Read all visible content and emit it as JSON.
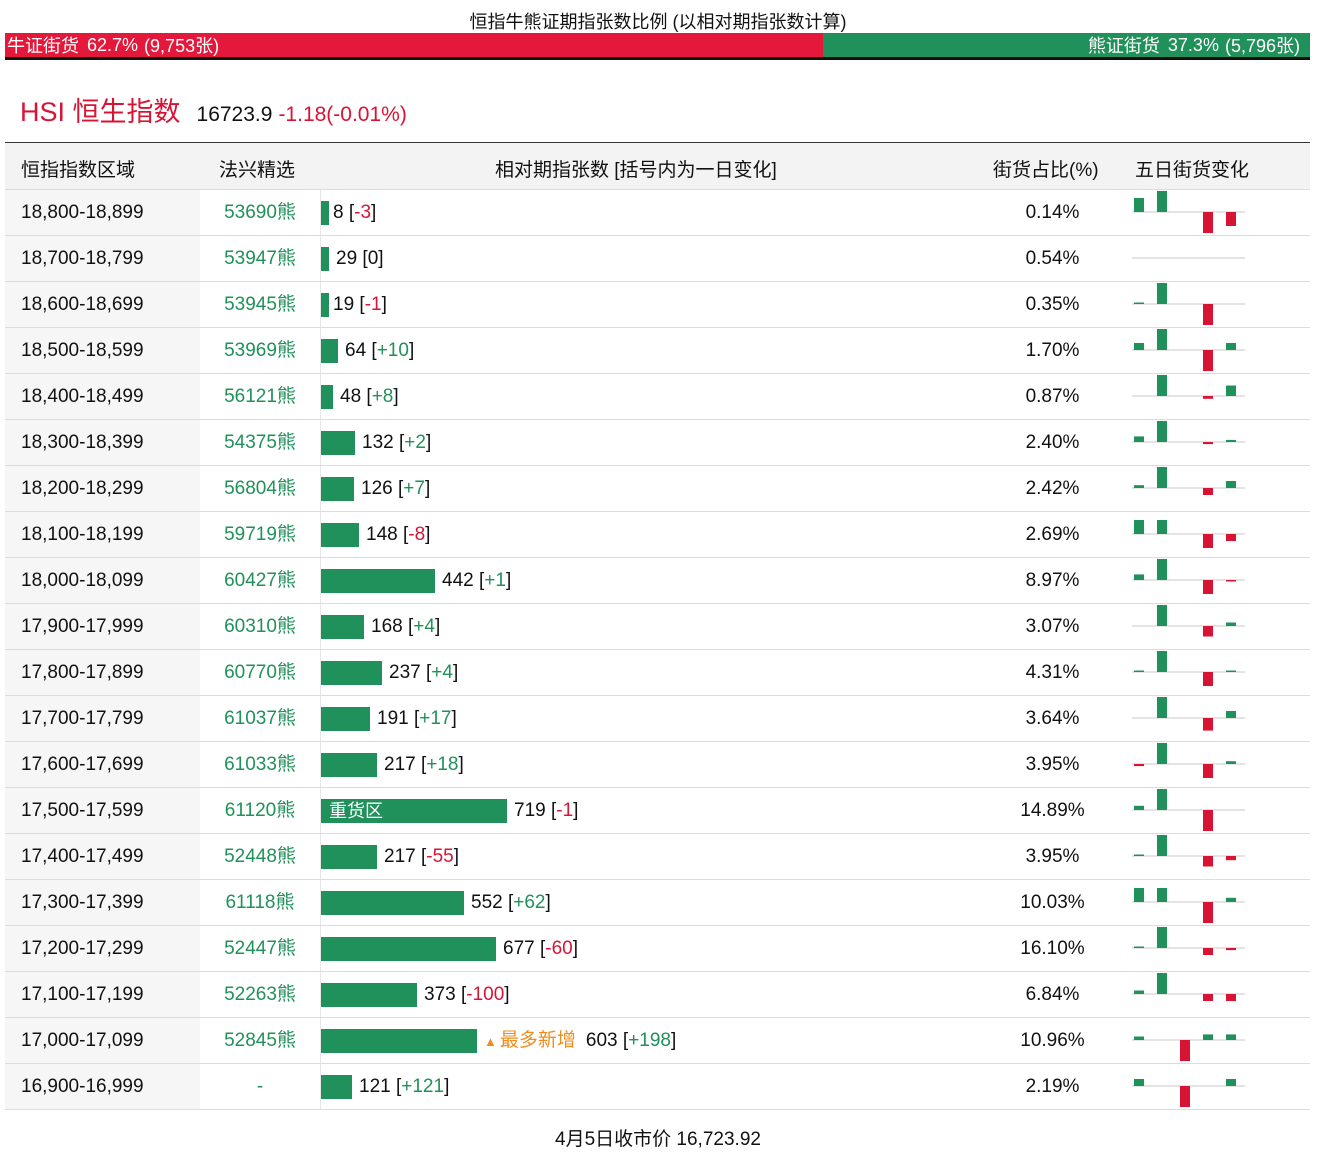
{
  "title": "恒指牛熊证期指张数比例 (以相对期指张数计算)",
  "ratio": {
    "bull_label": "牛证街货",
    "bull_pct": "62.7%",
    "bull_count": "(9,753张)",
    "bull_fraction": 0.627,
    "bear_label": "熊证街货",
    "bear_pct": "37.3%",
    "bear_count": "(5,796张)"
  },
  "index": {
    "name": "HSI 恒生指数",
    "price": "16723.9",
    "change": "-1.18(-0.01%)"
  },
  "columns": {
    "range": "恒指指数区域",
    "warrant": "法兴精选",
    "contracts": "相对期指张数 [括号内为一日变化]",
    "share": "街货占比(%)",
    "five_day": "五日街货变化"
  },
  "heavy_label": "重货区",
  "most_added_label": "最多新增",
  "colors": {
    "up": "#20915a",
    "down": "#d81435",
    "accent": "#f08d1f"
  },
  "rows": [
    {
      "range": "18,800-18,899",
      "warrant": "53690熊",
      "count": 8,
      "change": "-3",
      "pct": "0.14%",
      "five": [
        2,
        3,
        0,
        -3,
        -2
      ]
    },
    {
      "range": "18,700-18,799",
      "warrant": "53947熊",
      "count": 29,
      "change": "0",
      "pct": "0.54%",
      "five": [
        0,
        0,
        0,
        0,
        0
      ]
    },
    {
      "range": "18,600-18,699",
      "warrant": "53945熊",
      "count": 19,
      "change": "-1",
      "pct": "0.35%",
      "five": [
        0.2,
        3,
        0,
        -3,
        0
      ]
    },
    {
      "range": "18,500-18,599",
      "warrant": "53969熊",
      "count": 64,
      "change": "+10",
      "pct": "1.70%",
      "five": [
        1,
        3,
        0,
        -3,
        1
      ]
    },
    {
      "range": "18,400-18,499",
      "warrant": "56121熊",
      "count": 48,
      "change": "+8",
      "pct": "0.87%",
      "five": [
        0,
        3,
        0,
        -0.4,
        1.5
      ]
    },
    {
      "range": "18,300-18,399",
      "warrant": "54375熊",
      "count": 132,
      "change": "+2",
      "pct": "2.40%",
      "five": [
        0.8,
        3,
        0,
        -0.3,
        0.3
      ]
    },
    {
      "range": "18,200-18,299",
      "warrant": "56804熊",
      "count": 126,
      "change": "+7",
      "pct": "2.42%",
      "five": [
        0.4,
        3,
        0,
        -1,
        1
      ]
    },
    {
      "range": "18,100-18,199",
      "warrant": "59719熊",
      "count": 148,
      "change": "-8",
      "pct": "2.69%",
      "five": [
        2,
        2,
        0,
        -2,
        -1
      ]
    },
    {
      "range": "18,000-18,099",
      "warrant": "60427熊",
      "count": 442,
      "change": "+1",
      "pct": "8.97%",
      "five": [
        0.8,
        3,
        0,
        -2,
        -0.2
      ]
    },
    {
      "range": "17,900-17,999",
      "warrant": "60310熊",
      "count": 168,
      "change": "+4",
      "pct": "3.07%",
      "five": [
        0,
        3,
        0,
        -1.5,
        0.5
      ]
    },
    {
      "range": "17,800-17,899",
      "warrant": "60770熊",
      "count": 237,
      "change": "+4",
      "pct": "4.31%",
      "five": [
        0.2,
        3,
        0,
        -2,
        0.2
      ]
    },
    {
      "range": "17,700-17,799",
      "warrant": "61037熊",
      "count": 191,
      "change": "+17",
      "pct": "3.64%",
      "five": [
        0,
        3,
        0,
        -1.8,
        1
      ]
    },
    {
      "range": "17,600-17,699",
      "warrant": "61033熊",
      "count": 217,
      "change": "+18",
      "pct": "3.95%",
      "five": [
        -0.3,
        3,
        0,
        -2,
        0.4
      ]
    },
    {
      "range": "17,500-17,599",
      "warrant": "61120熊",
      "count": 719,
      "change": "-1",
      "pct": "14.89%",
      "five": [
        0.6,
        3,
        0,
        -3,
        0
      ]
    },
    {
      "range": "17,400-17,499",
      "warrant": "52448熊",
      "count": 217,
      "change": "-55",
      "pct": "3.95%",
      "five": [
        0.2,
        3,
        0,
        -1.5,
        -0.6
      ]
    },
    {
      "range": "17,300-17,399",
      "warrant": "61118熊",
      "count": 552,
      "change": "+62",
      "pct": "10.03%",
      "five": [
        2,
        2,
        0,
        -3,
        0.6
      ]
    },
    {
      "range": "17,200-17,299",
      "warrant": "52447熊",
      "count": 677,
      "change": "-60",
      "pct": "16.10%",
      "five": [
        0.2,
        3,
        0,
        -1,
        -0.3
      ]
    },
    {
      "range": "17,100-17,199",
      "warrant": "52263熊",
      "count": 373,
      "change": "-100",
      "pct": "6.84%",
      "five": [
        0.5,
        3,
        0,
        -1,
        -1
      ]
    },
    {
      "range": "17,000-17,099",
      "warrant": "52845熊",
      "count": 603,
      "change": "+198",
      "pct": "10.96%",
      "five": [
        0.5,
        0,
        -3,
        0.8,
        0.8
      ],
      "most_added": true
    },
    {
      "range": "16,900-16,999",
      "warrant": "-",
      "count": 121,
      "change": "+121",
      "pct": "2.19%",
      "five": [
        1,
        0,
        -3,
        0,
        1
      ]
    }
  ],
  "footer": "4月5日收市价 16,723.92"
}
